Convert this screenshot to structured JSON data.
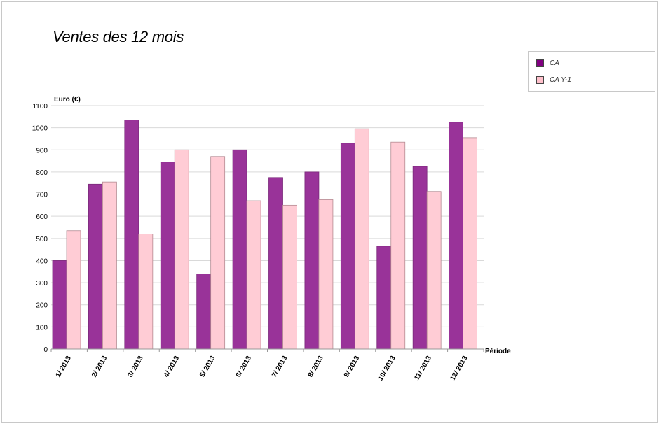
{
  "chart_data": {
    "type": "bar",
    "title": "Ventes des 12 mois",
    "ylabel": "Euro (€)",
    "xlabel": "Période",
    "ylim": [
      0,
      1100
    ],
    "yticks": [
      0,
      100,
      200,
      300,
      400,
      500,
      600,
      700,
      800,
      900,
      1000,
      1100
    ],
    "grid": true,
    "legend_position": "top-right",
    "categories": [
      "1/ 2013",
      "2/ 2013",
      "3/ 2013",
      "4/ 2013",
      "5/ 2013",
      "6/ 2013",
      "7/ 2013",
      "8/ 2013",
      "9/ 2013",
      "10/ 2013",
      "11/ 2013",
      "12/ 2013"
    ],
    "series": [
      {
        "name": "CA",
        "color": "#993399",
        "values": [
          400,
          745,
          1035,
          845,
          340,
          900,
          775,
          800,
          930,
          465,
          825,
          1025
        ]
      },
      {
        "name": "CA Y-1",
        "color": "#ffccd5",
        "values": [
          535,
          755,
          520,
          900,
          870,
          670,
          650,
          675,
          995,
          935,
          712,
          955
        ]
      }
    ]
  },
  "legend": {
    "items": [
      {
        "label": "CA",
        "color": "#800080"
      },
      {
        "label": "CA Y-1",
        "color": "#ffc0cb"
      }
    ]
  }
}
